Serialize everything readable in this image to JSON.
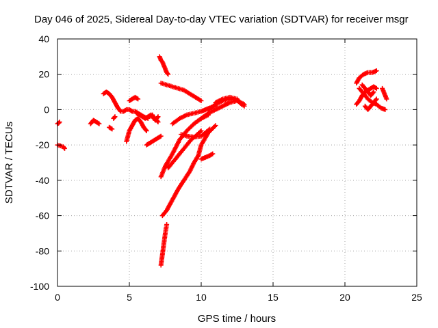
{
  "chart_data": {
    "type": "scatter",
    "title": "Day 046 of 2025, Sidereal Day-to-day VTEC variation (SDTVAR) for receiver msgr",
    "xlabel": "GPS time / hours",
    "ylabel": "SDTVAR / TECUs",
    "xlim": [
      0,
      25
    ],
    "ylim": [
      -100,
      40
    ],
    "xticks": [
      0,
      5,
      10,
      15,
      20,
      25
    ],
    "yticks": [
      -100,
      -80,
      -60,
      -40,
      -20,
      0,
      20,
      40
    ],
    "grid": true,
    "marker": "+",
    "colors": {
      "points": "#ff0000",
      "grid": "#a0a0a0",
      "axes": "#000000"
    },
    "series": [
      {
        "x": [
          0.0,
          0.1,
          0.15
        ],
        "y": [
          -8,
          -7.5,
          -7
        ]
      },
      {
        "x": [
          0.0,
          0.2,
          0.4,
          0.5
        ],
        "y": [
          -20,
          -20.5,
          -21,
          -22
        ]
      },
      {
        "x": [
          2.3,
          2.5,
          2.7,
          2.9
        ],
        "y": [
          -8,
          -6,
          -7,
          -8
        ]
      },
      {
        "x": [
          3.2,
          3.4,
          3.6,
          3.8,
          4.0,
          4.2,
          4.4,
          4.6,
          4.8,
          5.0,
          5.2,
          5.4,
          5.6,
          5.8,
          6.0,
          6.3
        ],
        "y": [
          9,
          10,
          9,
          7,
          4,
          1,
          -1,
          -1,
          0,
          0,
          -1,
          -1,
          -2,
          -3,
          -4,
          -5
        ]
      },
      {
        "x": [
          3.6,
          3.8
        ],
        "y": [
          -10,
          -11
        ]
      },
      {
        "x": [
          3.9,
          4.0
        ],
        "y": [
          -5,
          -4
        ]
      },
      {
        "x": [
          4.8,
          4.9,
          5.0,
          5.2,
          5.4,
          5.6,
          5.8,
          6.0,
          6.2
        ],
        "y": [
          -18,
          -15,
          -12,
          -9,
          -6,
          -5,
          -7,
          -10,
          -12
        ]
      },
      {
        "x": [
          5.0,
          5.2,
          5.4,
          5.6
        ],
        "y": [
          5,
          6,
          7,
          6
        ]
      },
      {
        "x": [
          5.5,
          5.7,
          5.9,
          6.1,
          6.3,
          6.5,
          6.7,
          6.9,
          7.0
        ],
        "y": [
          -2,
          -3,
          -4,
          -5,
          -4,
          -3,
          -5,
          -6,
          -7
        ]
      },
      {
        "x": [
          6.2,
          6.4,
          6.6,
          6.8,
          7.0,
          7.2
        ],
        "y": [
          -20,
          -19,
          -18,
          -17,
          -16,
          -15
        ]
      },
      {
        "x": [
          6.6,
          6.8,
          7.0
        ],
        "y": [
          -3,
          -6,
          -4
        ]
      },
      {
        "x": [
          7.1,
          7.2,
          7.3,
          7.4,
          7.5,
          7.6,
          7.7
        ],
        "y": [
          30,
          28,
          27,
          25,
          23,
          21,
          20
        ]
      },
      {
        "x": [
          7.2,
          7.6,
          8.0,
          8.4,
          8.8,
          9.2,
          9.6,
          10.0
        ],
        "y": [
          15,
          14,
          13,
          12,
          11,
          9,
          7,
          5
        ]
      },
      {
        "x": [
          7.2,
          7.5,
          8.0,
          8.5,
          9.0,
          9.5,
          10.0,
          10.5
        ],
        "y": [
          -38,
          -32,
          -25,
          -17,
          -12,
          -8,
          -5,
          -3
        ]
      },
      {
        "x": [
          7.3,
          7.6,
          8.0,
          8.4,
          8.8,
          9.2,
          9.5,
          9.8,
          10.0,
          10.5,
          11.0
        ],
        "y": [
          -60,
          -57,
          -51,
          -45,
          -40,
          -35,
          -30,
          -26,
          -20,
          -13,
          -9
        ]
      },
      {
        "x": [
          7.2,
          7.3,
          7.4,
          7.5,
          7.6
        ],
        "y": [
          -88,
          -82,
          -76,
          -70,
          -65
        ]
      },
      {
        "x": [
          8.0,
          8.5,
          9.0,
          9.5,
          10.0,
          10.3,
          10.6,
          11.0
        ],
        "y": [
          -8,
          -5,
          -3,
          -2,
          -1,
          0,
          1,
          2
        ]
      },
      {
        "x": [
          7.7,
          8.0,
          8.5,
          9.0,
          9.3,
          9.6,
          10.0
        ],
        "y": [
          -33,
          -30,
          -25,
          -20,
          -17,
          -15,
          -12
        ]
      },
      {
        "x": [
          8.6,
          9.0,
          9.5,
          10.0,
          10.3,
          10.6
        ],
        "y": [
          -14,
          -15,
          -15.5,
          -15,
          -13,
          -11
        ]
      },
      {
        "x": [
          9.5,
          10.0,
          10.5,
          11.0,
          11.5,
          12.0,
          12.5,
          13.0
        ],
        "y": [
          -8,
          -5,
          -2,
          0,
          2,
          4,
          5,
          3
        ]
      },
      {
        "x": [
          10.0,
          10.3,
          10.6,
          10.8
        ],
        "y": [
          -28,
          -27,
          -26,
          -25
        ]
      },
      {
        "x": [
          10.5,
          11.0,
          11.5,
          12.0,
          12.5,
          13.0
        ],
        "y": [
          0,
          3,
          5,
          6,
          5,
          2
        ]
      },
      {
        "x": [
          11.0,
          11.5,
          12.0,
          12.5,
          12.8
        ],
        "y": [
          4,
          6,
          7,
          6,
          3
        ]
      },
      {
        "x": [
          20.8,
          21.0,
          21.3,
          21.6,
          21.9,
          22.2
        ],
        "y": [
          15,
          18,
          20,
          21,
          21,
          22
        ]
      },
      {
        "x": [
          20.8,
          21.0,
          21.2,
          21.4,
          21.6,
          21.8,
          22.0,
          22.2
        ],
        "y": [
          3,
          5,
          8,
          10,
          11,
          12,
          13,
          12
        ]
      },
      {
        "x": [
          21.0,
          21.3,
          21.6,
          21.9,
          22.2,
          22.5,
          22.8
        ],
        "y": [
          12,
          9,
          6,
          4,
          3,
          1,
          0
        ]
      },
      {
        "x": [
          21.2,
          21.4,
          21.6,
          21.8,
          22.0
        ],
        "y": [
          14,
          12,
          10,
          8,
          10
        ]
      },
      {
        "x": [
          21.4,
          21.6,
          21.8,
          22.0,
          22.2
        ],
        "y": [
          2,
          0,
          2,
          4,
          6
        ]
      },
      {
        "x": [
          22.6,
          22.7,
          22.8,
          22.9
        ],
        "y": [
          12,
          10,
          8,
          6
        ]
      }
    ]
  }
}
